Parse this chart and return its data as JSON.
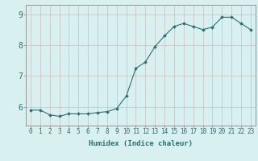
{
  "x": [
    0,
    1,
    2,
    3,
    4,
    5,
    6,
    7,
    8,
    9,
    10,
    11,
    12,
    13,
    14,
    15,
    16,
    17,
    18,
    19,
    20,
    21,
    22,
    23
  ],
  "y": [
    5.9,
    5.9,
    5.75,
    5.7,
    5.78,
    5.78,
    5.78,
    5.82,
    5.85,
    5.95,
    6.35,
    7.25,
    7.45,
    7.95,
    8.3,
    8.6,
    8.7,
    8.6,
    8.5,
    8.58,
    8.9,
    8.9,
    8.7,
    8.5
  ],
  "line_color": "#2d6e6e",
  "marker_color": "#2d6e6e",
  "bg_color": "#d8f0f0",
  "grid_color": "#c8bebe",
  "axis_color": "#2d6e6e",
  "xlabel": "Humidex (Indice chaleur)",
  "ylim": [
    5.4,
    9.3
  ],
  "yticks": [
    6,
    7,
    8,
    9
  ],
  "xlim": [
    -0.5,
    23.5
  ],
  "xticks": [
    0,
    1,
    2,
    3,
    4,
    5,
    6,
    7,
    8,
    9,
    10,
    11,
    12,
    13,
    14,
    15,
    16,
    17,
    18,
    19,
    20,
    21,
    22,
    23
  ],
  "tick_fontsize": 5.5,
  "label_fontsize": 6.5
}
